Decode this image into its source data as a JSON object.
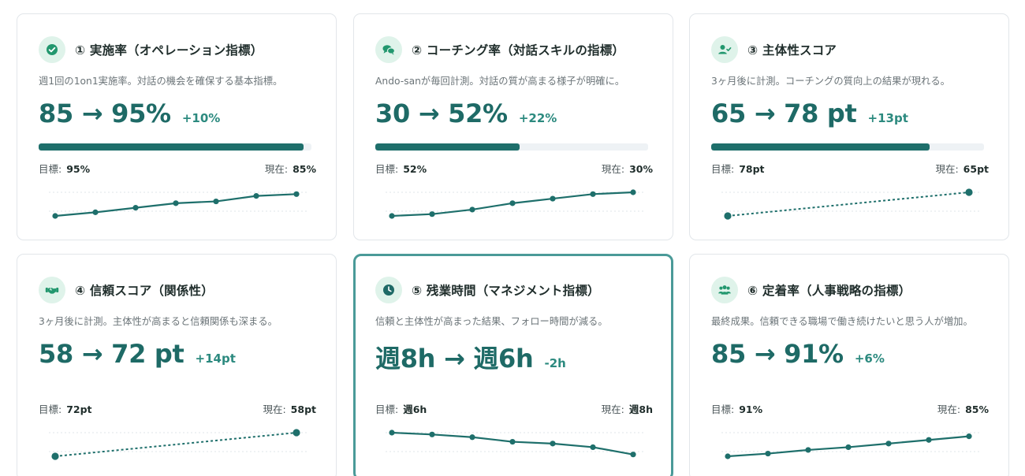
{
  "colors": {
    "accent": "#1e6a66",
    "delta": "#2c8a7f",
    "icon_bg": "#dff3ea",
    "highlight_border": "#4a9a98"
  },
  "cards": [
    {
      "icon": "check-circle-icon",
      "title": "① 実施率（オペレーション指標）",
      "description": "週1回の1on1実施率。対話の機会を確保する基本指標。",
      "metric": "85 → 95%",
      "delta": "+10%",
      "progress": 0.97,
      "target_label": "目標:",
      "target_value": "95%",
      "current_label": "現在:",
      "current_value": "85%",
      "trend": [
        1.0,
        1.4,
        1.9,
        2.4,
        2.6,
        3.2,
        3.4
      ],
      "trend_style": "solid",
      "highlighted": false
    },
    {
      "icon": "chat-bubbles-icon",
      "title": "② コーチング率（対話スキルの指標）",
      "description": "Ando-sanが毎回計測。対話の質が高まる様子が明確に。",
      "metric": "30 → 52%",
      "delta": "+22%",
      "progress": 0.53,
      "target_label": "目標:",
      "target_value": "52%",
      "current_label": "現在:",
      "current_value": "30%",
      "trend": [
        1.0,
        1.2,
        1.7,
        2.4,
        2.9,
        3.4,
        3.6
      ],
      "trend_style": "solid",
      "highlighted": false
    },
    {
      "icon": "user-check-icon",
      "title": "③ 主体性スコア",
      "description": "3ヶ月後に計測。コーチングの質向上の結果が現れる。",
      "metric": "65 → 78 pt",
      "delta": "+13pt",
      "progress": 0.8,
      "target_label": "目標:",
      "target_value": "78pt",
      "current_label": "現在:",
      "current_value": "65pt",
      "trend": [
        1.0,
        3.6
      ],
      "trend_style": "dashed",
      "highlighted": false
    },
    {
      "icon": "handshake-icon",
      "title": "④ 信頼スコア（関係性）",
      "description": "3ヶ月後に計測。主体性が高まると信頼関係も深まる。",
      "metric": "58 → 72 pt",
      "delta": "+14pt",
      "progress": null,
      "target_label": "目標:",
      "target_value": "72pt",
      "current_label": "現在:",
      "current_value": "58pt",
      "trend": [
        1.0,
        3.6
      ],
      "trend_style": "dashed",
      "highlighted": false
    },
    {
      "icon": "clock-icon",
      "title": "⑤ 残業時間（マネジメント指標）",
      "description": "信頼と主体性が高まった結果、フォロー時間が減る。",
      "metric": "週8h → 週6h",
      "delta": "-2h",
      "progress": null,
      "target_label": "目標:",
      "target_value": "週6h",
      "current_label": "現在:",
      "current_value": "週8h",
      "trend": [
        3.6,
        3.4,
        3.1,
        2.6,
        2.4,
        2.0,
        1.2
      ],
      "trend_style": "solid",
      "highlighted": true
    },
    {
      "icon": "users-icon",
      "title": "⑥ 定着率（人事戦略の指標）",
      "description": "最終成果。信頼できる職場で働き続けたいと思う人が増加。",
      "metric": "85 → 91%",
      "delta": "+6%",
      "progress": null,
      "target_label": "目標:",
      "target_value": "91%",
      "current_label": "現在:",
      "current_value": "85%",
      "trend": [
        1.0,
        1.3,
        1.7,
        2.0,
        2.4,
        2.8,
        3.2
      ],
      "trend_style": "solid",
      "highlighted": false
    }
  ]
}
